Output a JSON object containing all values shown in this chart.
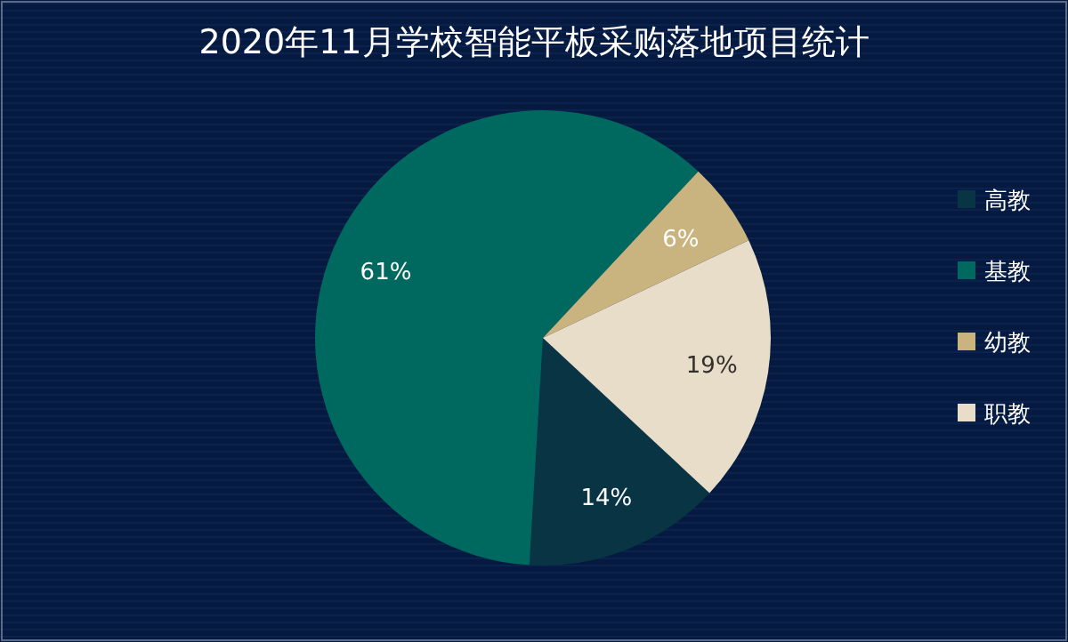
{
  "chart_data": {
    "type": "pie",
    "title": "2020年11月学校智能平板采购落地项目统计",
    "categories": [
      "高教",
      "基教",
      "幼教",
      "职教"
    ],
    "values": [
      14,
      61,
      6,
      19
    ],
    "value_labels": [
      "14%",
      "61%",
      "6%",
      "19%"
    ],
    "colors": [
      "#083444",
      "#00695f",
      "#c9b37e",
      "#e8ddc9"
    ],
    "legend": "right"
  }
}
